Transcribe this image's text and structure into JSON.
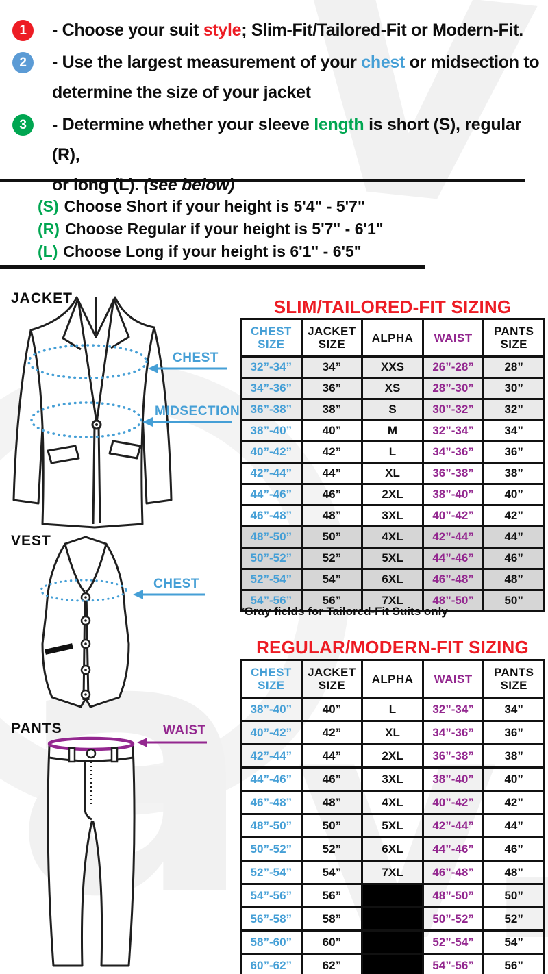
{
  "colors": {
    "accent_red": "#ed1c24",
    "accent_blue": "#459fd6",
    "accent_green": "#00a651",
    "accent_purple": "#93278f",
    "badge_blue": "#5b9bd5",
    "row_gray_light": "#eaeaea",
    "row_gray_dark": "#d6d6d6"
  },
  "instructions": {
    "items": [
      {
        "num": "1",
        "badge_color": "#ed1c24",
        "segments": [
          {
            "text": "- Choose your suit "
          },
          {
            "text": "style",
            "color": "#ed1c24"
          },
          {
            "text": "; Slim-Fit/Tailored-Fit or Modern-Fit."
          }
        ]
      },
      {
        "num": "2",
        "badge_color": "#5b9bd5",
        "segments": [
          {
            "text": "- Use the largest measurement of your "
          },
          {
            "text": "chest",
            "color": "#459fd6"
          },
          {
            "text": " or midsection to"
          },
          {
            "br": true
          },
          {
            "text": "determine the size of your jacket"
          }
        ]
      },
      {
        "num": "3",
        "badge_color": "#00a651",
        "segments": [
          {
            "text": "- Determine whether your sleeve "
          },
          {
            "text": "length",
            "color": "#00a651"
          },
          {
            "text": " is short (S), regular (R),"
          },
          {
            "br": true
          },
          {
            "text": "or long (L). "
          },
          {
            "text": "(see below)",
            "italic": true
          }
        ]
      }
    ]
  },
  "height_guide": {
    "prefix_color": "#00a651",
    "lines": [
      {
        "prefix": "(S)",
        "text": "Choose Short if your height is 5'4\" - 5'7\""
      },
      {
        "prefix": "(R)",
        "text": "Choose Regular if your height is 5'7\" - 6'1\""
      },
      {
        "prefix": "(L)",
        "text": "Choose Long if your height is 6'1\" - 6'5\""
      }
    ]
  },
  "diagrams": {
    "jacket": {
      "label": "JACKET",
      "chest_label": "CHEST",
      "midsection_label": "MIDSECTION"
    },
    "vest": {
      "label": "VEST",
      "chest_label": "CHEST"
    },
    "pants": {
      "label": "PANTS",
      "waist_label": "WAIST"
    }
  },
  "slim_table": {
    "title": "SLIM/TAILORED-FIT SIZING",
    "title_color": "#ed1c24",
    "column_colors": [
      "#459fd6",
      "#111111",
      "#111111",
      "#93278f",
      "#111111"
    ],
    "headers": [
      "CHEST SIZE",
      "JACKET SIZE",
      "ALPHA",
      "WAIST",
      "PANTS SIZE"
    ],
    "rows": [
      {
        "shade": "light",
        "cells": [
          "32”-34”",
          "34”",
          "XXS",
          "26”-28”",
          "28”"
        ]
      },
      {
        "shade": "light",
        "cells": [
          "34”-36”",
          "36”",
          "XS",
          "28”-30”",
          "30”"
        ]
      },
      {
        "shade": "light",
        "cells": [
          "36”-38”",
          "38”",
          "S",
          "30”-32”",
          "32”"
        ]
      },
      {
        "shade": null,
        "cells": [
          "38”-40”",
          "40”",
          "M",
          "32”-34”",
          "34”"
        ]
      },
      {
        "shade": null,
        "cells": [
          "40”-42”",
          "42”",
          "L",
          "34”-36”",
          "36”"
        ]
      },
      {
        "shade": null,
        "cells": [
          "42”-44”",
          "44”",
          "XL",
          "36”-38”",
          "38”"
        ]
      },
      {
        "shade": null,
        "cells": [
          "44”-46”",
          "46”",
          "2XL",
          "38”-40”",
          "40”"
        ]
      },
      {
        "shade": null,
        "cells": [
          "46”-48”",
          "48”",
          "3XL",
          "40”-42”",
          "42”"
        ]
      },
      {
        "shade": "dark",
        "cells": [
          "48”-50”",
          "50”",
          "4XL",
          "42”-44”",
          "44”"
        ]
      },
      {
        "shade": "dark",
        "cells": [
          "50”-52”",
          "52”",
          "5XL",
          "44”-46”",
          "46”"
        ]
      },
      {
        "shade": "dark",
        "cells": [
          "52”-54”",
          "54”",
          "6XL",
          "46”-48”",
          "48”"
        ]
      },
      {
        "shade": "dark",
        "cells": [
          "54”-56”",
          "56”",
          "7XL",
          "48”-50”",
          "50”"
        ]
      }
    ],
    "note": "*Gray fields for Tailored-Fit Suits only"
  },
  "regular_table": {
    "title": "REGULAR/MODERN-FIT SIZING",
    "title_color": "#ed1c24",
    "column_colors": [
      "#459fd6",
      "#111111",
      "#111111",
      "#93278f",
      "#111111"
    ],
    "headers": [
      "CHEST SIZE",
      "JACKET SIZE",
      "ALPHA",
      "WAIST",
      "PANTS SIZE"
    ],
    "rows": [
      {
        "shade": null,
        "cells": [
          "38”-40”",
          "40”",
          "L",
          "32”-34”",
          "34”"
        ]
      },
      {
        "shade": null,
        "cells": [
          "40”-42”",
          "42”",
          "XL",
          "34”-36”",
          "36”"
        ]
      },
      {
        "shade": null,
        "cells": [
          "42”-44”",
          "44”",
          "2XL",
          "36”-38”",
          "38”"
        ]
      },
      {
        "shade": null,
        "cells": [
          "44”-46”",
          "46”",
          "3XL",
          "38”-40”",
          "40”"
        ]
      },
      {
        "shade": null,
        "cells": [
          "46”-48”",
          "48”",
          "4XL",
          "40”-42”",
          "42”"
        ]
      },
      {
        "shade": null,
        "cells": [
          "48”-50”",
          "50”",
          "5XL",
          "42”-44”",
          "44”"
        ]
      },
      {
        "shade": null,
        "cells": [
          "50”-52”",
          "52”",
          "6XL",
          "44”-46”",
          "46”"
        ]
      },
      {
        "shade": null,
        "cells": [
          "52”-54”",
          "54”",
          "7XL",
          "46”-48”",
          "48”"
        ]
      },
      {
        "shade": null,
        "cells": [
          "54”-56”",
          "56”",
          null,
          "48”-50”",
          "50”"
        ]
      },
      {
        "shade": null,
        "cells": [
          "56”-58”",
          "58”",
          null,
          "50”-52”",
          "52”"
        ]
      },
      {
        "shade": null,
        "cells": [
          "58”-60”",
          "60”",
          null,
          "52”-54”",
          "54”"
        ]
      },
      {
        "shade": null,
        "cells": [
          "60”-62”",
          "62”",
          null,
          "54”-56”",
          "56”"
        ]
      }
    ]
  }
}
